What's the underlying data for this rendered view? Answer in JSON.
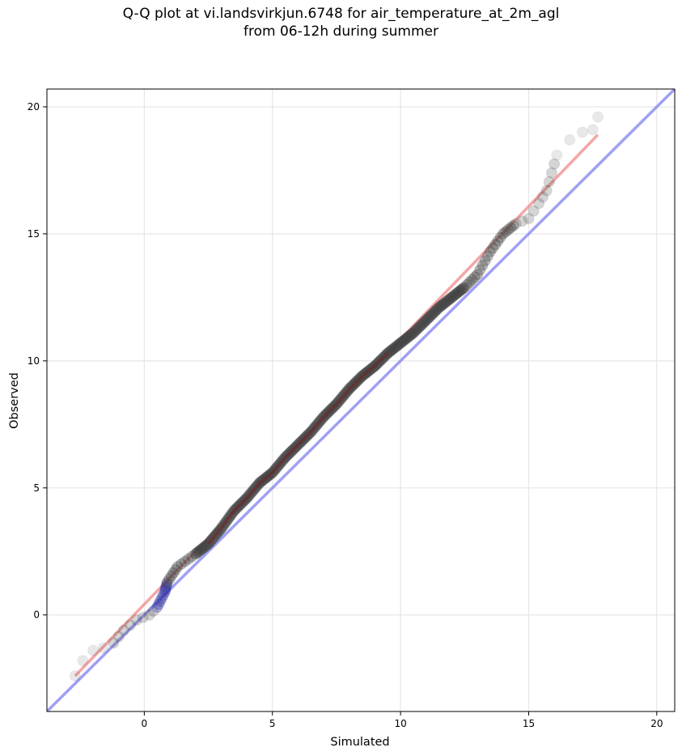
{
  "title_line1": "Q-Q plot at vi.landsvirkjun.6748 for air_temperature_at_2m_agl",
  "title_line2": "from 06-12h during summer",
  "chart_data": {
    "type": "scatter",
    "xlabel": "Simulated",
    "ylabel": "Observed",
    "xlim": [
      -3.8,
      20.7
    ],
    "ylim": [
      -3.8,
      20.7
    ],
    "xticks": [
      0,
      5,
      10,
      15,
      20
    ],
    "yticks": [
      0,
      5,
      10,
      15,
      20
    ],
    "grid": true,
    "colors": {
      "points": "#404040",
      "regression_line": "#f08080",
      "identity_line": "#8080f0",
      "center_segment": "#8b1a1a",
      "low_segment": "#3030a0"
    },
    "quantile_anchors": [
      [
        -2.7,
        -2.4
      ],
      [
        -2.4,
        -1.8
      ],
      [
        -2.0,
        -1.4
      ],
      [
        -1.6,
        -1.3
      ],
      [
        -1.2,
        -1.1
      ],
      [
        -0.8,
        -0.6
      ],
      [
        -0.3,
        -0.2
      ],
      [
        0.2,
        0.0
      ],
      [
        0.5,
        0.3
      ],
      [
        0.8,
        0.9
      ],
      [
        0.9,
        1.3
      ],
      [
        1.3,
        1.9
      ],
      [
        2.0,
        2.4
      ],
      [
        2.5,
        2.8
      ],
      [
        3.0,
        3.4
      ],
      [
        3.5,
        4.1
      ],
      [
        4.0,
        4.6
      ],
      [
        4.5,
        5.2
      ],
      [
        5.0,
        5.6
      ],
      [
        5.5,
        6.2
      ],
      [
        6.0,
        6.7
      ],
      [
        6.5,
        7.2
      ],
      [
        7.0,
        7.8
      ],
      [
        7.5,
        8.3
      ],
      [
        8.0,
        8.9
      ],
      [
        8.5,
        9.4
      ],
      [
        9.0,
        9.8
      ],
      [
        9.5,
        10.3
      ],
      [
        10.0,
        10.7
      ],
      [
        10.5,
        11.1
      ],
      [
        11.0,
        11.6
      ],
      [
        11.5,
        12.1
      ],
      [
        12.0,
        12.5
      ],
      [
        12.5,
        12.9
      ],
      [
        13.0,
        13.4
      ],
      [
        13.5,
        14.3
      ],
      [
        14.0,
        15.0
      ],
      [
        14.5,
        15.4
      ],
      [
        15.0,
        15.6
      ],
      [
        15.4,
        16.2
      ],
      [
        15.7,
        16.7
      ],
      [
        15.9,
        17.4
      ],
      [
        16.1,
        18.1
      ],
      [
        16.6,
        18.7
      ],
      [
        17.1,
        19.0
      ],
      [
        17.5,
        19.1
      ],
      [
        17.7,
        19.6
      ]
    ],
    "regression_line": [
      [
        -2.7,
        -2.4
      ],
      [
        17.7,
        18.9
      ]
    ],
    "identity_line": [
      [
        -3.8,
        -3.8
      ],
      [
        20.7,
        20.7
      ]
    ]
  }
}
